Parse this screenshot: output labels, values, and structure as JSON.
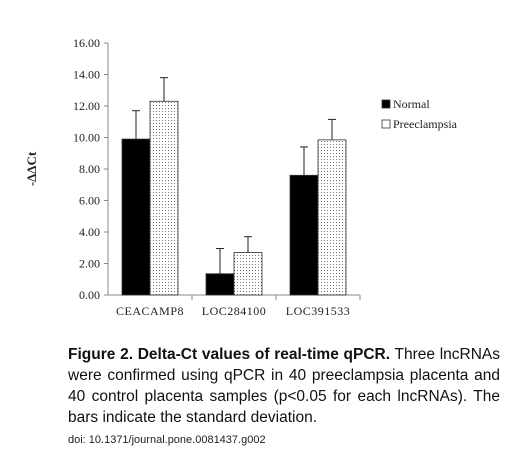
{
  "chart_data": {
    "type": "bar",
    "categories": [
      "CEACAMP8",
      "LOC284100",
      "LOC391533"
    ],
    "series": [
      {
        "name": "Normal",
        "color": "#000000",
        "values": [
          9.9,
          1.35,
          7.6
        ],
        "errors": [
          1.8,
          1.6,
          1.8
        ]
      },
      {
        "name": "Preeclampsia",
        "color": "pattern-dots",
        "values": [
          12.3,
          2.7,
          9.85
        ],
        "errors": [
          1.5,
          1.0,
          1.3
        ]
      }
    ],
    "ylabel": "-ΔΔCt",
    "ylim": [
      0,
      16
    ],
    "yticks": [
      "0.00",
      "2.00",
      "4.00",
      "6.00",
      "8.00",
      "10.00",
      "12.00",
      "14.00",
      "16.00"
    ],
    "legend_position": "right",
    "grid": false
  },
  "caption": {
    "title": "Figure 2.  Delta-Ct values of real-time qPCR.",
    "body": " Three lncRNAs were confirmed using qPCR in 40 preeclampsia placenta and 40 control placenta samples (p<0.05 for each lncRNAs). The bars indicate the standard deviation.",
    "doi": "doi: 10.1371/journal.pone.0081437.g002"
  }
}
